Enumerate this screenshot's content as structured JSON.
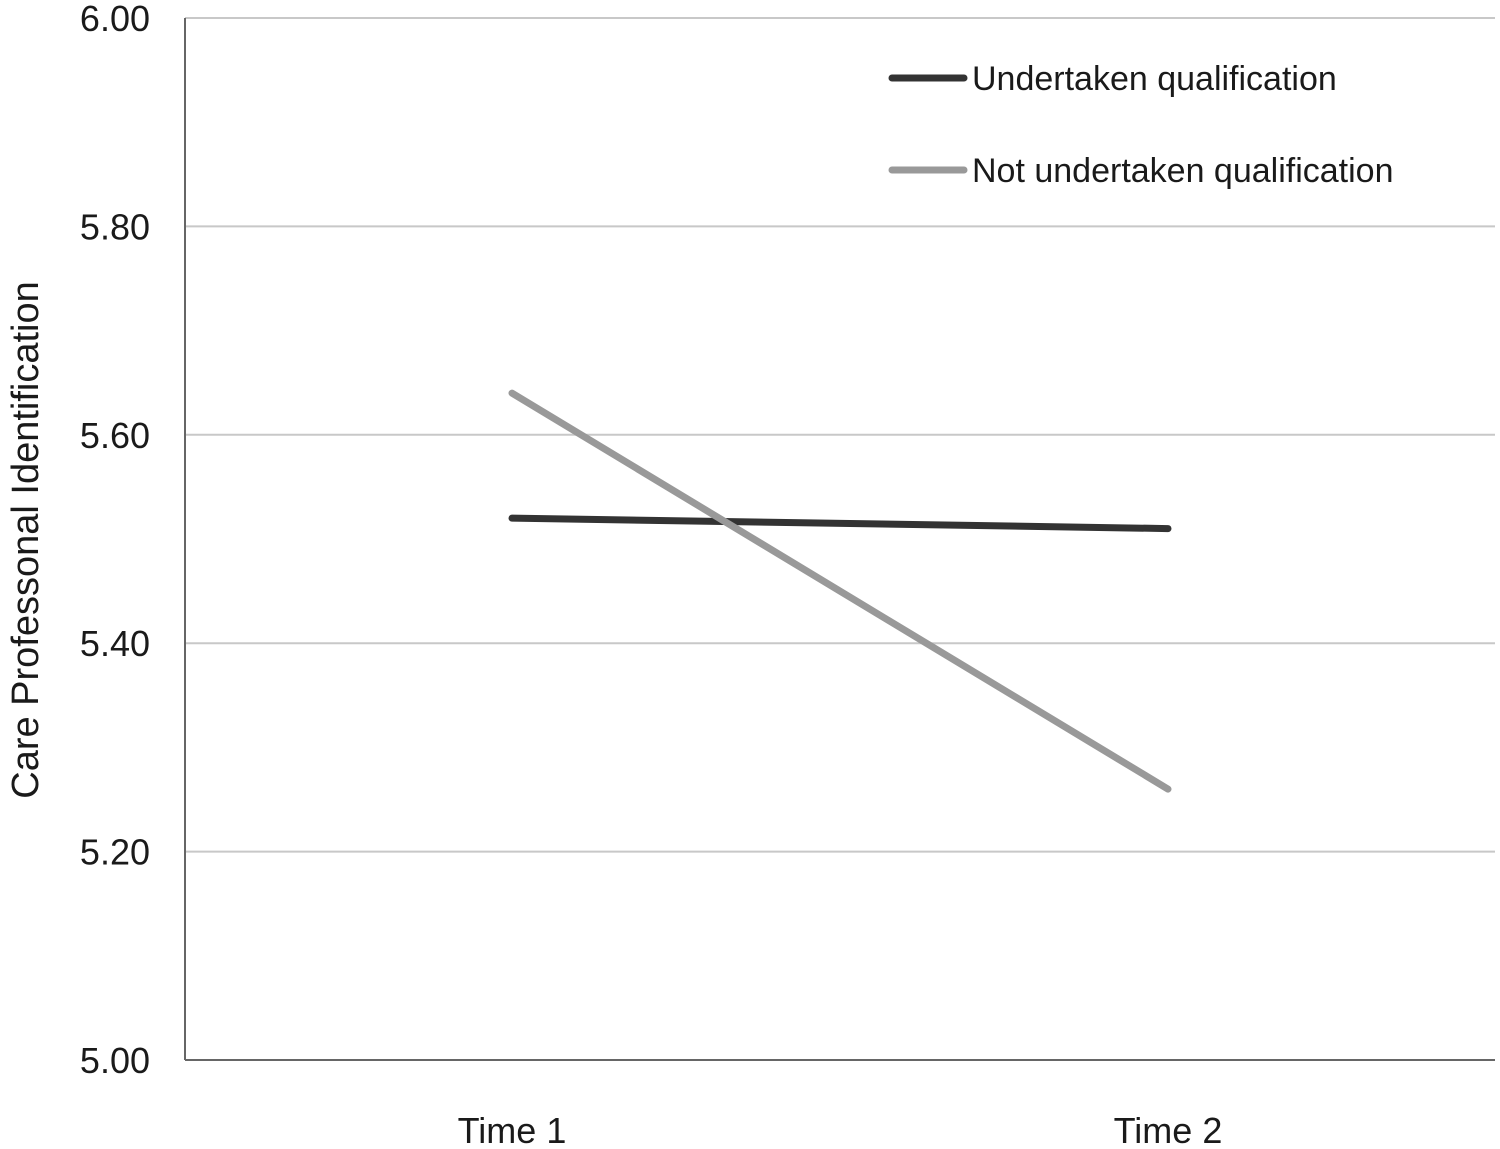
{
  "chart_data": {
    "type": "line",
    "categories": [
      "Time 1",
      "Time 2"
    ],
    "ylabel": "Care Professonal Identification",
    "xlabel": "",
    "ylim": [
      5.0,
      6.0
    ],
    "yticks": [
      "5.00",
      "5.20",
      "5.40",
      "5.60",
      "5.80",
      "6.00"
    ],
    "grid": true,
    "legend_position": "top-right",
    "series": [
      {
        "name": "Undertaken qualification",
        "values": [
          5.52,
          5.51
        ],
        "color": "#333333"
      },
      {
        "name": "Not undertaken qualification",
        "values": [
          5.64,
          5.26
        ],
        "color": "#999999"
      }
    ]
  }
}
